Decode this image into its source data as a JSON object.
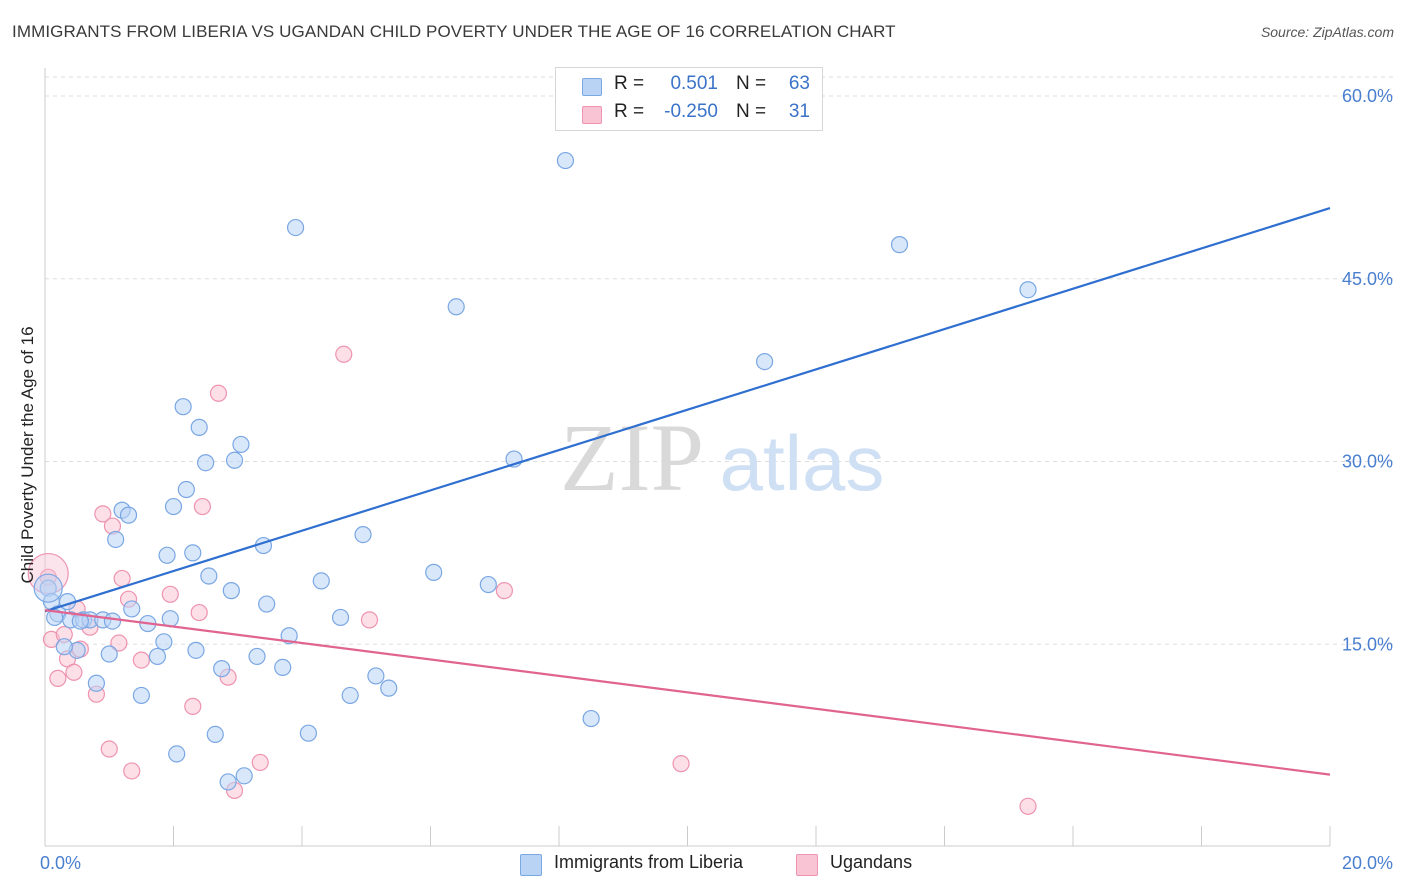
{
  "title": "IMMIGRANTS FROM LIBERIA VS UGANDAN CHILD POVERTY UNDER THE AGE OF 16 CORRELATION CHART",
  "source": "Source: ZipAtlas.com",
  "watermark": {
    "zip": "ZIP",
    "atlas": "atlas"
  },
  "colors": {
    "blue_fill": "#b9d3f5",
    "blue_stroke": "#7aa7e3",
    "blue_line": "#2f6fd0",
    "pink_fill": "#f9c4d4",
    "pink_stroke": "#ee93b0",
    "pink_line": "#e0648f",
    "grid": "#dddddd",
    "tick_text": "#4a7fd0"
  },
  "legend": {
    "rows": [
      {
        "r_label": "R =",
        "r_value": "0.501",
        "n_label": "N =",
        "n_value": "63"
      },
      {
        "r_label": "R =",
        "r_value": "-0.250",
        "n_label": "N =",
        "n_value": "31"
      }
    ]
  },
  "bottom_legend": {
    "series1": "Immigrants from Liberia",
    "series2": "Ugandans"
  },
  "chart_data": {
    "type": "scatter",
    "title": "IMMIGRANTS FROM LIBERIA VS UGANDAN CHILD POVERTY UNDER THE AGE OF 16 CORRELATION CHART",
    "xlabel": "",
    "ylabel": "Child Poverty Under the Age of 16",
    "xlim": [
      0,
      20
    ],
    "ylim": [
      0,
      62
    ],
    "x_ticks": [
      0,
      20
    ],
    "x_tick_labels": [
      "0.0%",
      "20.0%"
    ],
    "y_ticks": [
      15,
      30,
      45,
      60
    ],
    "y_tick_labels": [
      "15.0%",
      "30.0%",
      "45.0%",
      "60.0%"
    ],
    "grid": true,
    "series": [
      {
        "name": "Immigrants from Liberia",
        "r": 0.501,
        "n": 63,
        "trend": {
          "x0": 0,
          "y0": 17.7,
          "x1": 20,
          "y1": 50.8
        },
        "points": [
          [
            0.05,
            19.6
          ],
          [
            0.1,
            18.5
          ],
          [
            0.2,
            17.5
          ],
          [
            0.35,
            18.5
          ],
          [
            0.4,
            17.0
          ],
          [
            0.5,
            14.5
          ],
          [
            0.6,
            17.0
          ],
          [
            0.7,
            17.0
          ],
          [
            0.8,
            11.8
          ],
          [
            0.9,
            17.0
          ],
          [
            1.0,
            14.2
          ],
          [
            1.1,
            23.6
          ],
          [
            1.2,
            26.0
          ],
          [
            1.3,
            25.6
          ],
          [
            1.35,
            17.9
          ],
          [
            1.5,
            10.8
          ],
          [
            1.6,
            16.7
          ],
          [
            1.75,
            14.0
          ],
          [
            1.85,
            15.2
          ],
          [
            1.9,
            22.3
          ],
          [
            1.95,
            17.1
          ],
          [
            2.0,
            26.3
          ],
          [
            2.05,
            6.0
          ],
          [
            2.15,
            34.5
          ],
          [
            2.2,
            27.7
          ],
          [
            2.3,
            22.5
          ],
          [
            2.35,
            14.5
          ],
          [
            2.4,
            32.8
          ],
          [
            2.5,
            29.9
          ],
          [
            2.55,
            20.6
          ],
          [
            2.65,
            7.6
          ],
          [
            2.75,
            13.0
          ],
          [
            2.85,
            3.7
          ],
          [
            2.9,
            19.4
          ],
          [
            2.95,
            30.1
          ],
          [
            3.05,
            31.4
          ],
          [
            3.1,
            4.2
          ],
          [
            3.3,
            14.0
          ],
          [
            3.4,
            23.1
          ],
          [
            3.45,
            18.3
          ],
          [
            3.7,
            13.1
          ],
          [
            3.8,
            15.7
          ],
          [
            3.9,
            49.2
          ],
          [
            4.1,
            7.7
          ],
          [
            4.3,
            20.2
          ],
          [
            4.6,
            17.2
          ],
          [
            4.75,
            10.8
          ],
          [
            4.95,
            24.0
          ],
          [
            5.15,
            12.4
          ],
          [
            5.35,
            11.4
          ],
          [
            6.05,
            20.9
          ],
          [
            6.4,
            42.7
          ],
          [
            6.9,
            19.9
          ],
          [
            7.3,
            30.2
          ],
          [
            8.1,
            54.7
          ],
          [
            8.5,
            8.9
          ],
          [
            11.2,
            38.2
          ],
          [
            13.3,
            47.8
          ],
          [
            15.3,
            44.1
          ],
          [
            0.15,
            17.2
          ],
          [
            0.55,
            16.9
          ],
          [
            1.05,
            16.9
          ],
          [
            0.3,
            14.8
          ]
        ]
      },
      {
        "name": "Ugandans",
        "r": -0.25,
        "n": 31,
        "trend": {
          "x0": 0,
          "y0": 17.8,
          "x1": 20,
          "y1": 4.3
        },
        "points": [
          [
            0.05,
            20.5
          ],
          [
            0.1,
            15.4
          ],
          [
            0.2,
            12.2
          ],
          [
            0.3,
            15.8
          ],
          [
            0.35,
            13.8
          ],
          [
            0.45,
            12.7
          ],
          [
            0.5,
            17.9
          ],
          [
            0.55,
            14.6
          ],
          [
            0.7,
            16.4
          ],
          [
            0.8,
            10.9
          ],
          [
            0.9,
            25.7
          ],
          [
            1.0,
            6.4
          ],
          [
            1.05,
            24.7
          ],
          [
            1.15,
            15.1
          ],
          [
            1.2,
            20.4
          ],
          [
            1.3,
            18.7
          ],
          [
            1.35,
            4.6
          ],
          [
            1.5,
            13.7
          ],
          [
            1.95,
            19.1
          ],
          [
            2.3,
            9.9
          ],
          [
            2.4,
            17.6
          ],
          [
            2.45,
            26.3
          ],
          [
            2.7,
            35.6
          ],
          [
            2.85,
            12.3
          ],
          [
            2.95,
            3.0
          ],
          [
            3.35,
            5.3
          ],
          [
            4.65,
            38.8
          ],
          [
            5.05,
            17.0
          ],
          [
            7.15,
            19.4
          ],
          [
            9.9,
            5.2
          ],
          [
            15.3,
            1.7
          ]
        ]
      }
    ]
  }
}
